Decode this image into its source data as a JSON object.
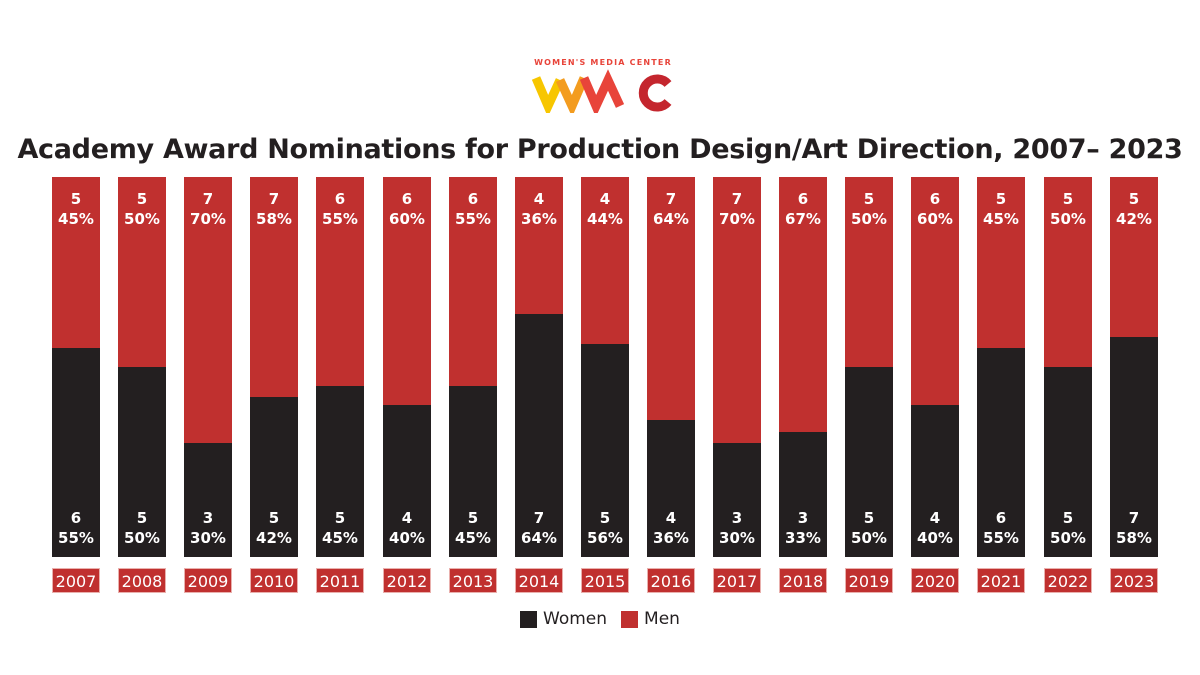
{
  "logo": {
    "text": "WOMEN'S MEDIA CENTER",
    "mark": "WMC"
  },
  "colors": {
    "women": "#231f20",
    "men": "#c0302f"
  },
  "chart_data": {
    "type": "bar",
    "stacked": true,
    "title": "Academy Award Nominations for Production Design/Art Direction, 2007– 2023",
    "categories": [
      "2007",
      "2008",
      "2009",
      "2010",
      "2011",
      "2012",
      "2013",
      "2014",
      "2015",
      "2016",
      "2017",
      "2018",
      "2019",
      "2020",
      "2021",
      "2022",
      "2023"
    ],
    "series": [
      {
        "name": "Women",
        "counts": [
          6,
          5,
          3,
          5,
          5,
          4,
          5,
          7,
          5,
          4,
          3,
          3,
          5,
          4,
          6,
          5,
          7
        ],
        "values": [
          55,
          50,
          30,
          42,
          45,
          40,
          45,
          64,
          56,
          36,
          30,
          33,
          50,
          40,
          55,
          50,
          58
        ]
      },
      {
        "name": "Men",
        "counts": [
          5,
          5,
          7,
          7,
          6,
          6,
          6,
          4,
          4,
          7,
          7,
          6,
          5,
          6,
          5,
          5,
          5
        ],
        "values": [
          45,
          50,
          70,
          58,
          55,
          60,
          55,
          36,
          44,
          64,
          70,
          67,
          50,
          60,
          45,
          50,
          42
        ]
      }
    ],
    "ylim": [
      0,
      100
    ],
    "legend": "bottom"
  }
}
